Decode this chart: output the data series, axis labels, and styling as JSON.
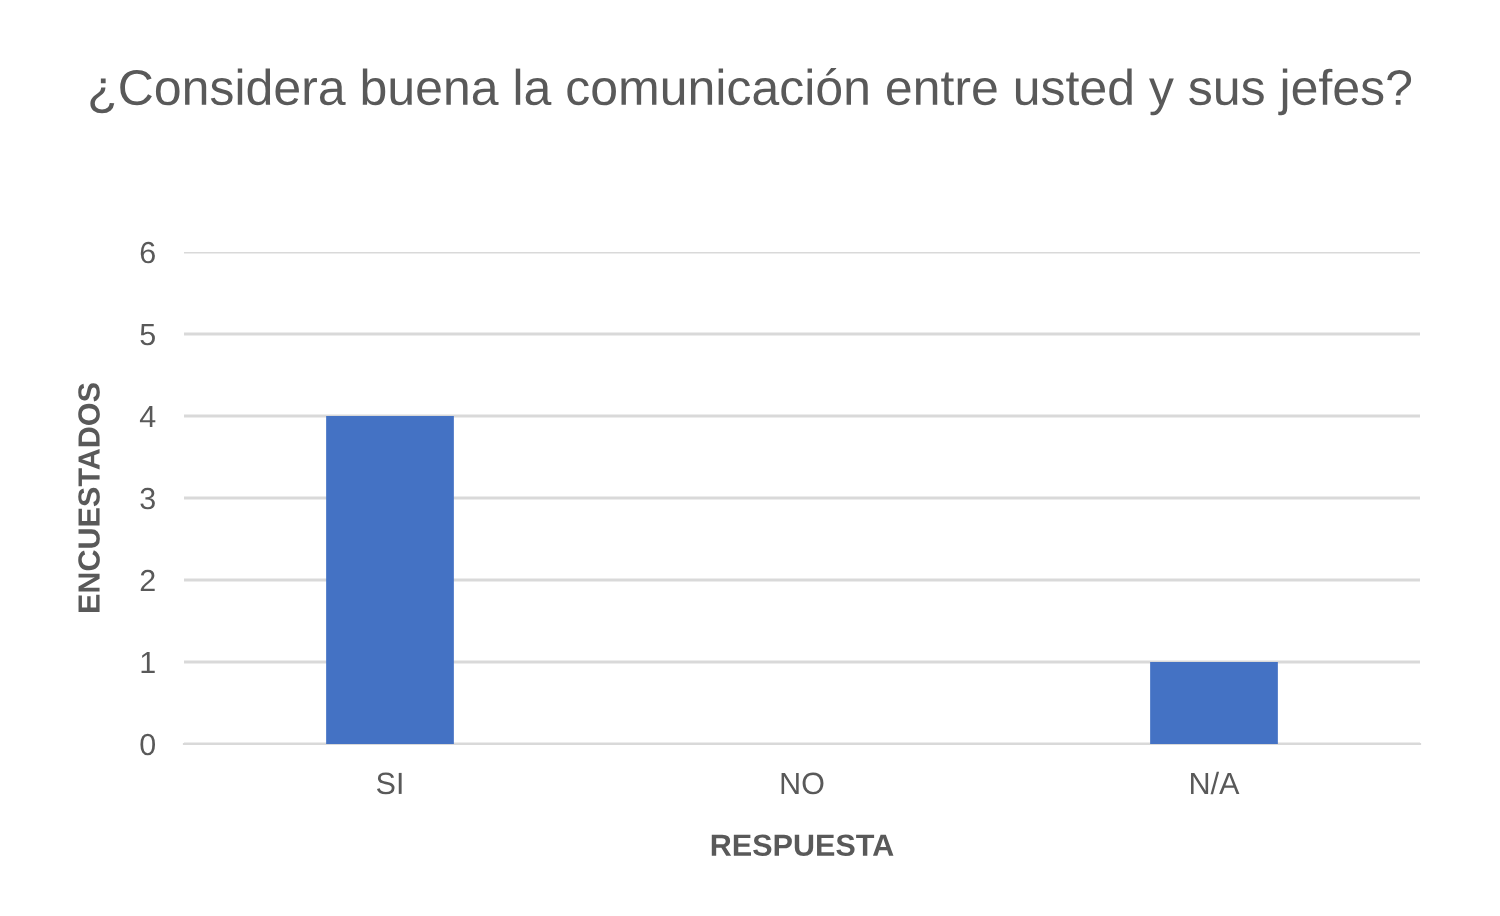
{
  "chart_data": {
    "type": "bar",
    "title": "¿Considera buena la comunicación entre usted y sus jefes?",
    "xlabel": "RESPUESTA",
    "ylabel": "ENCUESTADOS",
    "categories": [
      "SI",
      "NO",
      "N/A"
    ],
    "values": [
      4,
      0,
      1
    ],
    "color": "#4472c4",
    "ylim": [
      0,
      6
    ],
    "yticks": [
      0,
      1,
      2,
      3,
      4,
      5,
      6
    ],
    "grid": "y",
    "legend": false
  }
}
